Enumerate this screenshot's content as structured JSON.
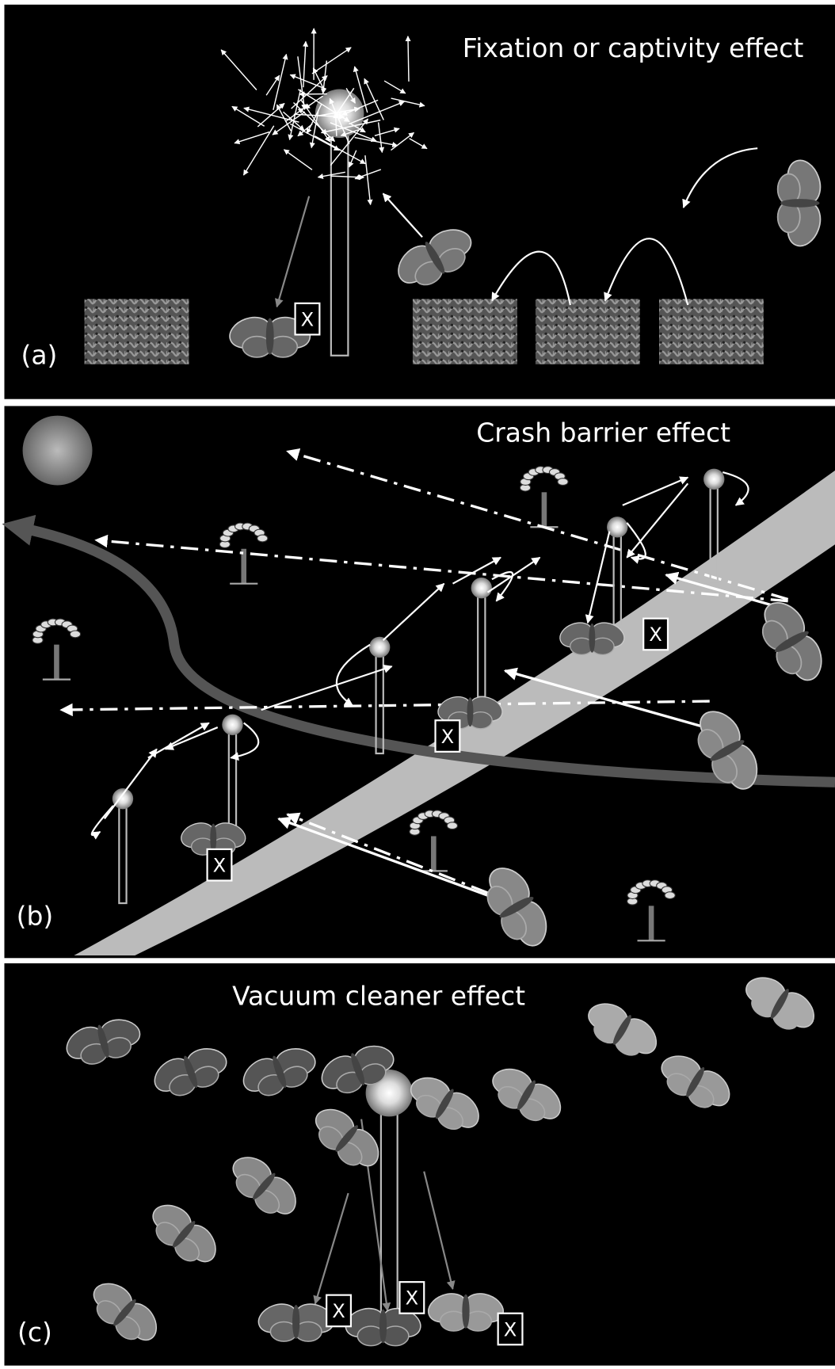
{
  "panels": [
    {
      "title": "Fixation or captivity effect",
      "label": "(a)",
      "marks": [
        "X"
      ]
    },
    {
      "title": "Crash barrier effect",
      "label": "(b)",
      "marks": [
        "X",
        "X",
        "X"
      ]
    },
    {
      "title": "Vacuum cleaner effect",
      "label": "(c)",
      "marks": [
        "X",
        "X",
        "X"
      ]
    }
  ]
}
